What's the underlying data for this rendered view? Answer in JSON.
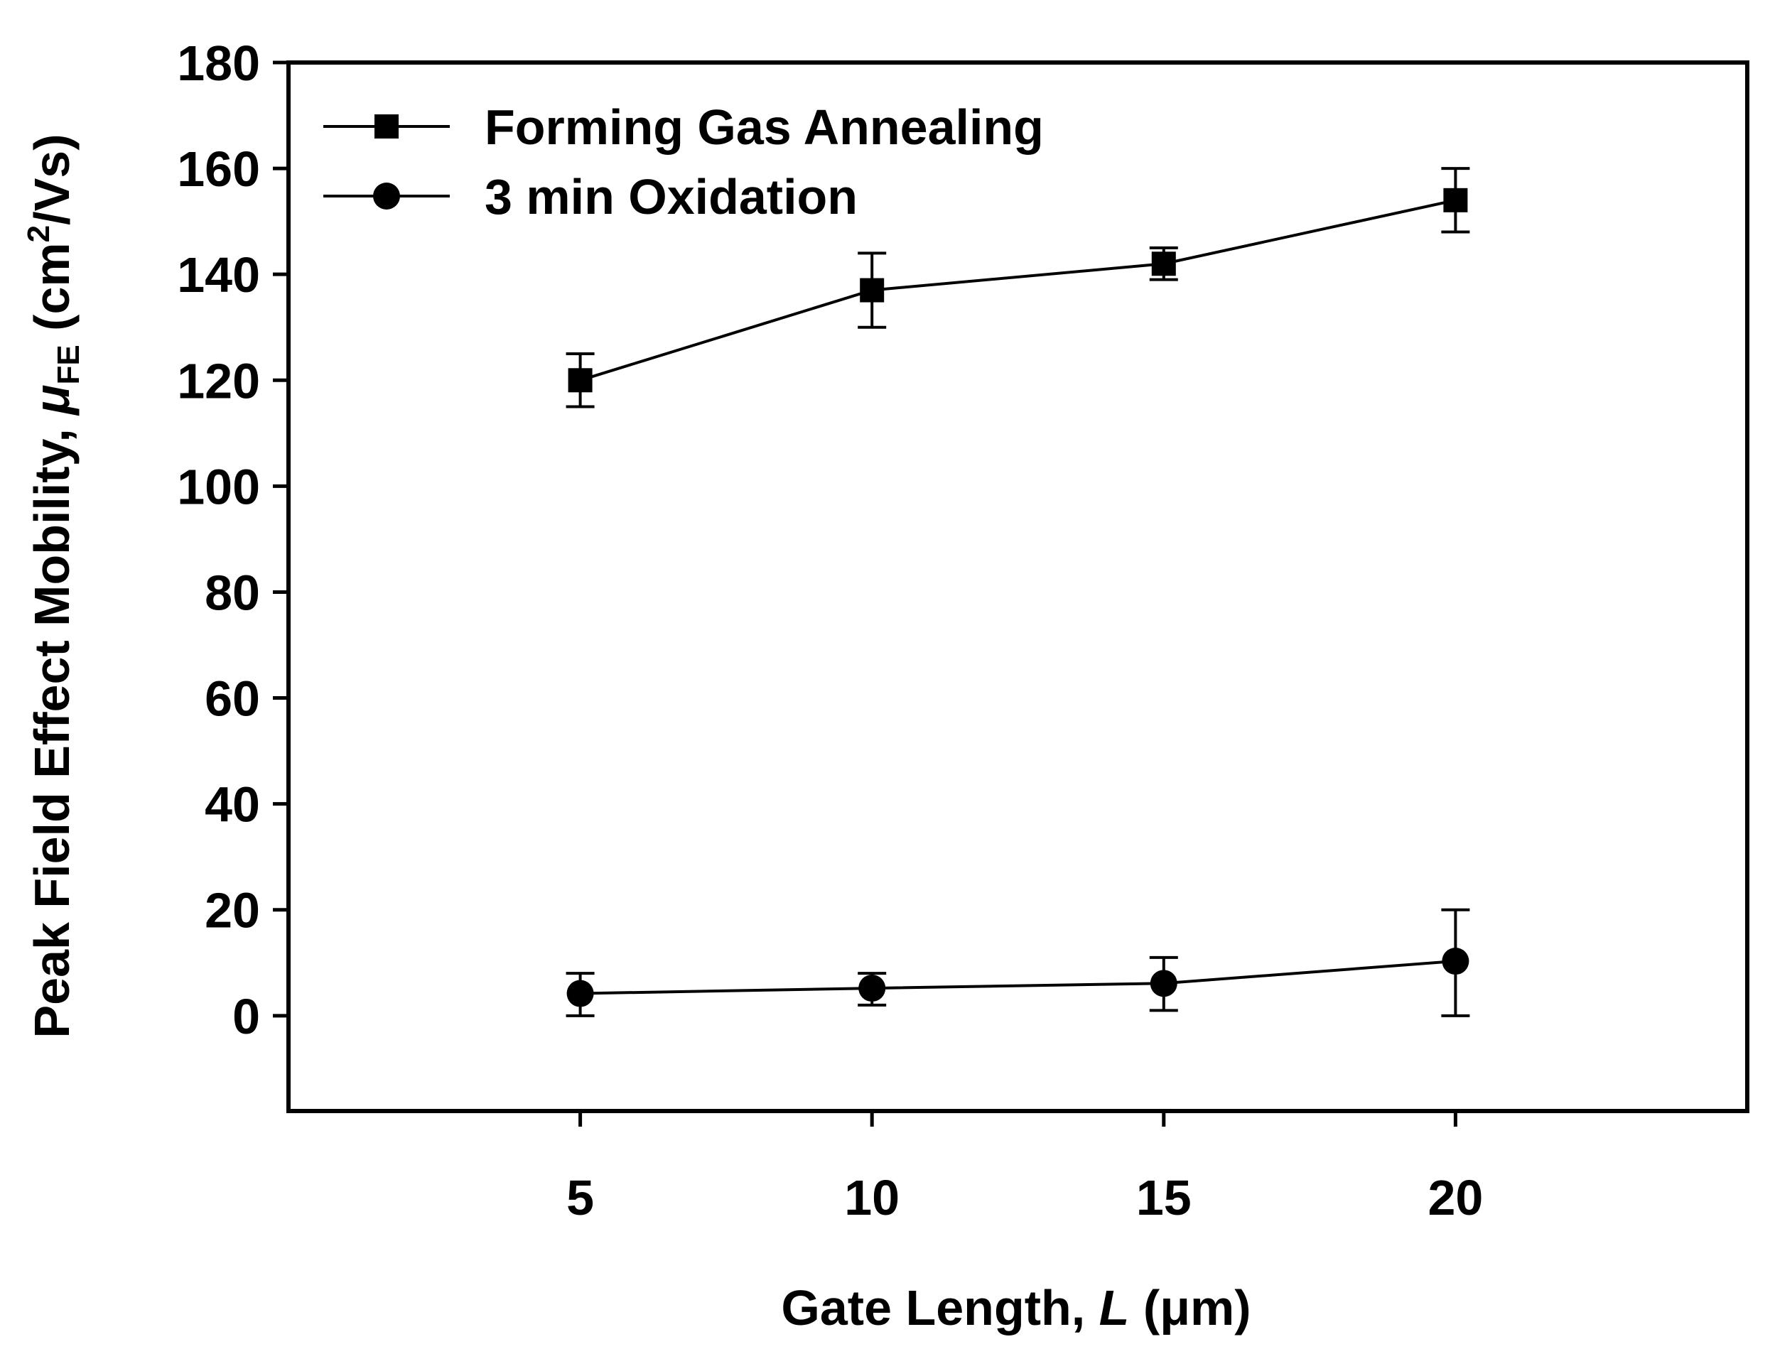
{
  "chart_data": {
    "type": "line",
    "title": "",
    "xlabel": "Gate Length, L (μm)",
    "xlabel_parts": {
      "prefix": "Gate Length, ",
      "var": "L",
      "unit": " (μm)"
    },
    "ylabel": "Peak Field Effect Mobility, μFE (cm2/Vs)",
    "ylabel_parts": {
      "prefix": "Peak Field Effect Mobility, ",
      "mu": "μ",
      "sub": "FE",
      "unit_open": " (cm",
      "sup": "2",
      "unit_close": "/Vs)"
    },
    "xlim": [
      0,
      25
    ],
    "ylim": [
      -18,
      180
    ],
    "xticks": [
      5,
      10,
      15,
      20
    ],
    "yticks": [
      0,
      20,
      40,
      60,
      80,
      100,
      120,
      140,
      160,
      180
    ],
    "grid": false,
    "legend_position": "top-left",
    "x": [
      5,
      10,
      15,
      20
    ],
    "series": [
      {
        "name": "Forming Gas Annealing",
        "marker": "square",
        "values": [
          120,
          137,
          142,
          154
        ],
        "err_low": [
          115,
          130,
          139,
          148
        ],
        "err_high": [
          125,
          144,
          145,
          160
        ]
      },
      {
        "name": "3 min Oxidation",
        "marker": "circle",
        "values": [
          4.2,
          5.2,
          6.1,
          10.3
        ],
        "err_low": [
          0,
          2,
          1,
          0
        ],
        "err_high": [
          8,
          8,
          11,
          20
        ]
      }
    ]
  }
}
